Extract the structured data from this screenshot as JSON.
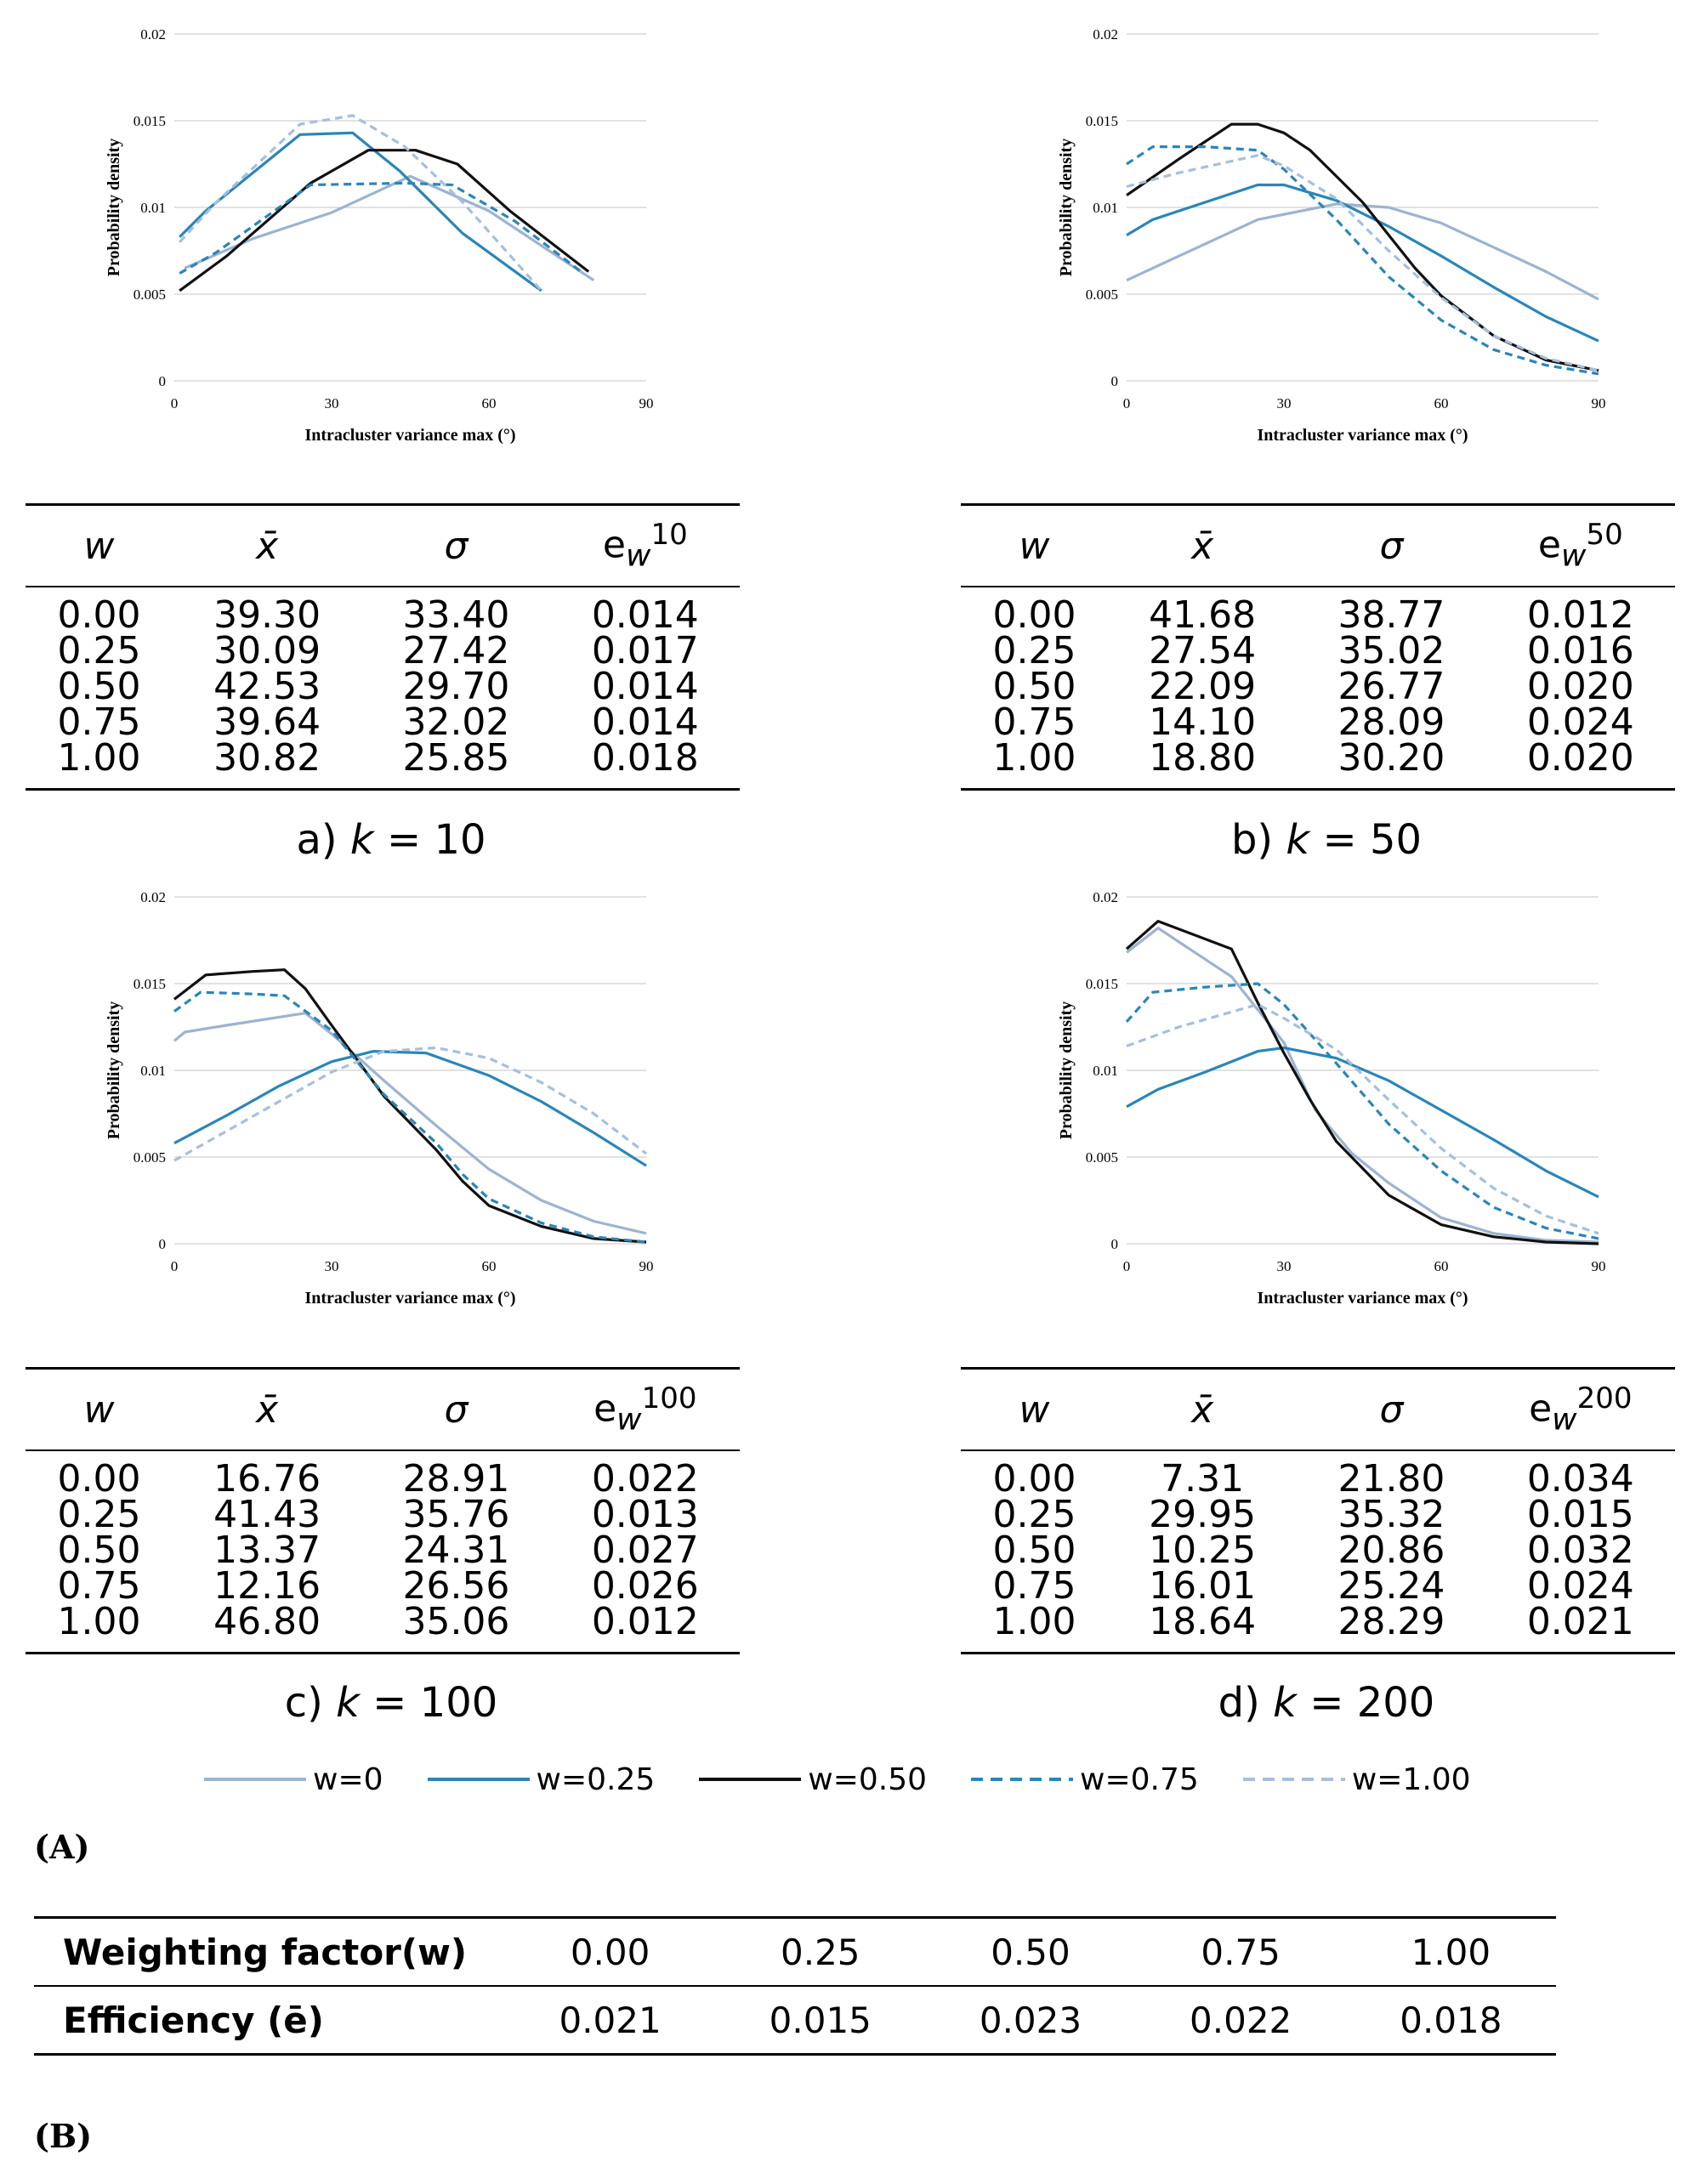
{
  "colors": {
    "w0": "#9db3d1",
    "w025": "#2a86b8",
    "w050": "#111111",
    "w075": "#2a86b8",
    "w100": "#a7bfdc",
    "grid": "#d9d9d9"
  },
  "chart_data": [
    {
      "type": "line",
      "title": "",
      "xlabel": "Intracluster variance max (°)",
      "ylabel": "Probability density",
      "xlim": [
        0,
        90
      ],
      "ylim": [
        0,
        0.02
      ],
      "xticks": [
        "0",
        "30",
        "60",
        "90"
      ],
      "yticks": [
        "0",
        "0.005",
        "0.01",
        "0.015",
        "0.02"
      ],
      "series": [
        {
          "name": "w=0",
          "x": [
            2,
            15,
            30,
            45,
            60,
            80
          ],
          "y": [
            0.0065,
            0.0082,
            0.0097,
            0.0118,
            0.0098,
            0.0058
          ]
        },
        {
          "name": "w=0.25",
          "x": [
            1,
            6,
            24,
            34,
            43,
            55,
            70
          ],
          "y": [
            0.0083,
            0.0098,
            0.0142,
            0.0143,
            0.0121,
            0.0085,
            0.0052
          ]
        },
        {
          "name": "w=0.50",
          "x": [
            1,
            10,
            26,
            37,
            46,
            54,
            64,
            79
          ],
          "y": [
            0.0052,
            0.0072,
            0.0114,
            0.0133,
            0.0133,
            0.0125,
            0.0098,
            0.0063
          ]
        },
        {
          "name": "w=0.75",
          "x": [
            1,
            8,
            26,
            44,
            53,
            65,
            78
          ],
          "y": [
            0.0062,
            0.0074,
            0.0113,
            0.0114,
            0.0113,
            0.0092,
            0.0062
          ]
        },
        {
          "name": "w=1.00",
          "x": [
            1,
            8,
            24,
            34,
            44,
            55,
            70
          ],
          "y": [
            0.008,
            0.0103,
            0.0148,
            0.0153,
            0.0135,
            0.0103,
            0.0052
          ]
        }
      ]
    },
    {
      "type": "line",
      "title": "",
      "xlabel": "Intracluster variance max (°)",
      "ylabel": "Probability density",
      "xlim": [
        0,
        90
      ],
      "ylim": [
        0,
        0.02
      ],
      "xticks": [
        "0",
        "30",
        "60",
        "90"
      ],
      "yticks": [
        "0",
        "0.005",
        "0.01",
        "0.015",
        "0.02"
      ],
      "series": [
        {
          "name": "w=0",
          "x": [
            0,
            10,
            25,
            40,
            50,
            60,
            70,
            80,
            90
          ],
          "y": [
            0.0058,
            0.0072,
            0.0093,
            0.0102,
            0.01,
            0.0091,
            0.0077,
            0.0063,
            0.0047
          ]
        },
        {
          "name": "w=0.25",
          "x": [
            0,
            5,
            15,
            25,
            30,
            40,
            50,
            60,
            70,
            80,
            90
          ],
          "y": [
            0.0084,
            0.0093,
            0.0103,
            0.0113,
            0.0113,
            0.0104,
            0.0089,
            0.0072,
            0.0054,
            0.0037,
            0.0023
          ]
        },
        {
          "name": "w=0.50",
          "x": [
            0,
            10,
            20,
            25,
            30,
            35,
            45,
            55,
            60,
            70,
            80,
            90
          ],
          "y": [
            0.0107,
            0.0128,
            0.0148,
            0.0148,
            0.0143,
            0.0133,
            0.0103,
            0.0065,
            0.0049,
            0.0026,
            0.0012,
            0.0006
          ]
        },
        {
          "name": "w=0.75",
          "x": [
            0,
            5,
            15,
            25,
            30,
            40,
            50,
            60,
            70,
            80,
            90
          ],
          "y": [
            0.0125,
            0.0135,
            0.0135,
            0.0133,
            0.0122,
            0.0093,
            0.006,
            0.0035,
            0.0018,
            0.0009,
            0.0004
          ]
        },
        {
          "name": "w=1.00",
          "x": [
            0,
            10,
            25,
            30,
            40,
            50,
            60,
            70,
            80,
            90
          ],
          "y": [
            0.0112,
            0.012,
            0.013,
            0.0124,
            0.0105,
            0.0075,
            0.0048,
            0.0026,
            0.0013,
            0.0006
          ]
        }
      ]
    },
    {
      "type": "line",
      "title": "",
      "xlabel": "Intracluster variance max (°)",
      "ylabel": "Probability density",
      "xlim": [
        0,
        90
      ],
      "ylim": [
        0,
        0.02
      ],
      "xticks": [
        "0",
        "30",
        "60",
        "90"
      ],
      "yticks": [
        "0",
        "0.005",
        "0.01",
        "0.015",
        "0.02"
      ],
      "series": [
        {
          "name": "w=0",
          "x": [
            0,
            2,
            10,
            25,
            30,
            40,
            50,
            60,
            70,
            80,
            90
          ],
          "y": [
            0.0117,
            0.0122,
            0.0126,
            0.0133,
            0.0121,
            0.0094,
            0.0068,
            0.0043,
            0.0025,
            0.0013,
            0.0006
          ]
        },
        {
          "name": "w=0.25",
          "x": [
            0,
            10,
            20,
            30,
            38,
            48,
            60,
            70,
            80,
            90
          ],
          "y": [
            0.0058,
            0.0074,
            0.0091,
            0.0105,
            0.0111,
            0.011,
            0.0097,
            0.0082,
            0.0064,
            0.0045
          ]
        },
        {
          "name": "w=0.50",
          "x": [
            0,
            6,
            15,
            21,
            25,
            30,
            40,
            50,
            55,
            60,
            70,
            80,
            90
          ],
          "y": [
            0.0141,
            0.0155,
            0.0157,
            0.0158,
            0.0147,
            0.0126,
            0.0085,
            0.0054,
            0.0036,
            0.0022,
            0.001,
            0.0003,
            0.0001
          ]
        },
        {
          "name": "w=0.75",
          "x": [
            0,
            5,
            15,
            21,
            30,
            40,
            50,
            55,
            60,
            70,
            80,
            90
          ],
          "y": [
            0.0134,
            0.0145,
            0.0144,
            0.0143,
            0.0123,
            0.0086,
            0.0058,
            0.004,
            0.0026,
            0.0012,
            0.0004,
            0.0001
          ]
        },
        {
          "name": "w=1.00",
          "x": [
            0,
            10,
            20,
            30,
            40,
            50,
            60,
            70,
            80,
            90
          ],
          "y": [
            0.0048,
            0.0065,
            0.0082,
            0.0099,
            0.0111,
            0.0113,
            0.0107,
            0.0093,
            0.0075,
            0.0052
          ]
        }
      ]
    },
    {
      "type": "line",
      "title": "",
      "xlabel": "Intracluster variance max (°)",
      "ylabel": "Probability density",
      "xlim": [
        0,
        90
      ],
      "ylim": [
        0,
        0.02
      ],
      "xticks": [
        "0",
        "30",
        "60",
        "90"
      ],
      "yticks": [
        "0",
        "0.005",
        "0.01",
        "0.015",
        "0.02"
      ],
      "series": [
        {
          "name": "w=0",
          "x": [
            0,
            6,
            20,
            30,
            36,
            43,
            50,
            60,
            70,
            80,
            90
          ],
          "y": [
            0.0168,
            0.0182,
            0.0154,
            0.0116,
            0.0077,
            0.0052,
            0.0035,
            0.0015,
            0.0006,
            0.0002,
            0.0001
          ]
        },
        {
          "name": "w=0.25",
          "x": [
            0,
            6,
            15,
            25,
            30,
            40,
            50,
            60,
            70,
            80,
            90
          ],
          "y": [
            0.0079,
            0.0089,
            0.0099,
            0.0111,
            0.0113,
            0.0107,
            0.0094,
            0.0077,
            0.006,
            0.0042,
            0.0027
          ]
        },
        {
          "name": "w=0.50",
          "x": [
            0,
            6,
            20,
            25,
            30,
            35,
            40,
            50,
            60,
            70,
            80,
            90
          ],
          "y": [
            0.017,
            0.0186,
            0.017,
            0.0139,
            0.011,
            0.0083,
            0.0059,
            0.0028,
            0.0011,
            0.0004,
            0.0001,
            0.0
          ]
        },
        {
          "name": "w=0.75",
          "x": [
            0,
            5,
            15,
            25,
            30,
            40,
            50,
            60,
            70,
            80,
            90
          ],
          "y": [
            0.0128,
            0.0145,
            0.0148,
            0.015,
            0.0138,
            0.0104,
            0.0069,
            0.0042,
            0.0021,
            0.0009,
            0.0003
          ]
        },
        {
          "name": "w=1.00",
          "x": [
            0,
            10,
            25,
            30,
            40,
            50,
            60,
            70,
            80,
            90
          ],
          "y": [
            0.0114,
            0.0125,
            0.0138,
            0.013,
            0.0112,
            0.0083,
            0.0055,
            0.0032,
            0.0016,
            0.0006
          ]
        }
      ]
    }
  ],
  "tables": [
    {
      "e_sup": "10",
      "caption_prefix": "a)",
      "k": "10",
      "headers": {
        "w": "w",
        "xbar": "x̄",
        "sigma": "σ",
        "e": "e"
      },
      "rows": [
        [
          "0.00",
          "39.30",
          "33.40",
          "0.014"
        ],
        [
          "0.25",
          "30.09",
          "27.42",
          "0.017"
        ],
        [
          "0.50",
          "42.53",
          "29.70",
          "0.014"
        ],
        [
          "0.75",
          "39.64",
          "32.02",
          "0.014"
        ],
        [
          "1.00",
          "30.82",
          "25.85",
          "0.018"
        ]
      ]
    },
    {
      "e_sup": "50",
      "caption_prefix": "b)",
      "k": "50",
      "headers": {
        "w": "w",
        "xbar": "x̄",
        "sigma": "σ",
        "e": "e"
      },
      "rows": [
        [
          "0.00",
          "41.68",
          "38.77",
          "0.012"
        ],
        [
          "0.25",
          "27.54",
          "35.02",
          "0.016"
        ],
        [
          "0.50",
          "22.09",
          "26.77",
          "0.020"
        ],
        [
          "0.75",
          "14.10",
          "28.09",
          "0.024"
        ],
        [
          "1.00",
          "18.80",
          "30.20",
          "0.020"
        ]
      ]
    },
    {
      "e_sup": "100",
      "caption_prefix": "c)",
      "k": "100",
      "headers": {
        "w": "w",
        "xbar": "x̄",
        "sigma": "σ",
        "e": "e"
      },
      "rows": [
        [
          "0.00",
          "16.76",
          "28.91",
          "0.022"
        ],
        [
          "0.25",
          "41.43",
          "35.76",
          "0.013"
        ],
        [
          "0.50",
          "13.37",
          "24.31",
          "0.027"
        ],
        [
          "0.75",
          "12.16",
          "26.56",
          "0.026"
        ],
        [
          "1.00",
          "46.80",
          "35.06",
          "0.012"
        ]
      ]
    },
    {
      "e_sup": "200",
      "caption_prefix": "d)",
      "k": "200",
      "headers": {
        "w": "w",
        "xbar": "x̄",
        "sigma": "σ",
        "e": "e"
      },
      "rows": [
        [
          "0.00",
          "7.31",
          "21.80",
          "0.034"
        ],
        [
          "0.25",
          "29.95",
          "35.32",
          "0.015"
        ],
        [
          "0.50",
          "10.25",
          "20.86",
          "0.032"
        ],
        [
          "0.75",
          "16.01",
          "25.24",
          "0.024"
        ],
        [
          "1.00",
          "18.64",
          "28.29",
          "0.021"
        ]
      ]
    }
  ],
  "caption_var": "k",
  "caption_eq": "=",
  "legend": [
    "w=0",
    "w=0.25",
    "w=0.50",
    "w=0.75",
    "w=1.00"
  ],
  "label_a": "(A)",
  "label_b": "(B)",
  "efficiency_table": {
    "row1_label": "Weighting factor(w)",
    "row2_label": "Efficiency (ē)",
    "weights": [
      "0.00",
      "0.25",
      "0.50",
      "0.75",
      "1.00"
    ],
    "efficiency": [
      "0.021",
      "0.015",
      "0.023",
      "0.022",
      "0.018"
    ]
  }
}
